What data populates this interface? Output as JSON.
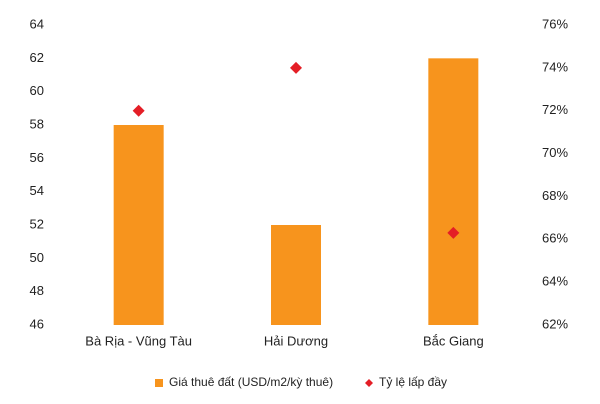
{
  "chart_data": {
    "type": "bar",
    "categories": [
      "Bà Rịa - Vũng Tàu",
      "Hải Dương",
      "Bắc Giang"
    ],
    "series": [
      {
        "name": "Giá thuê đất (USD/m2/kỳ  thuê)",
        "color": "#f7941d",
        "type": "bar",
        "values": [
          58,
          52,
          62
        ]
      },
      {
        "name": "Tỷ lệ lấp đầy",
        "color": "#e41e26",
        "type": "scatter",
        "axis": "y2",
        "values": [
          72,
          74,
          66.3
        ]
      }
    ],
    "ylim": [
      46,
      64
    ],
    "yticks": [
      46,
      48,
      50,
      52,
      54,
      56,
      58,
      60,
      62,
      64
    ],
    "y2lim": [
      62,
      76
    ],
    "y2ticks": [
      {
        "value": 62,
        "label": "62%"
      },
      {
        "value": 64,
        "label": "64%"
      },
      {
        "value": 66,
        "label": "66%"
      },
      {
        "value": 68,
        "label": "68%"
      },
      {
        "value": 70,
        "label": "70%"
      },
      {
        "value": 72,
        "label": "72%"
      },
      {
        "value": 74,
        "label": "74%"
      },
      {
        "value": 76,
        "label": "76%"
      }
    ],
    "grid": false
  }
}
